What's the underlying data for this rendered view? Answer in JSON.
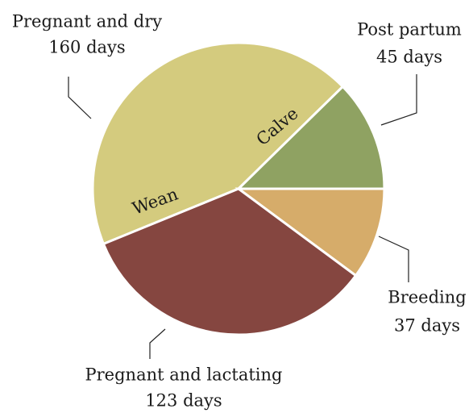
{
  "chart_data": {
    "type": "pie",
    "categories": [
      "Pregnant and dry",
      "Post partum",
      "Breeding",
      "Pregnant and lactating"
    ],
    "values": [
      160,
      45,
      37,
      123
    ],
    "value_labels": [
      "160 days",
      "45 days",
      "37 days",
      "123 days"
    ],
    "colors": [
      "#d4cb7e",
      "#8fa262",
      "#d6ac6a",
      "#854640"
    ],
    "annotations": [
      "Calve",
      "Wean"
    ]
  }
}
